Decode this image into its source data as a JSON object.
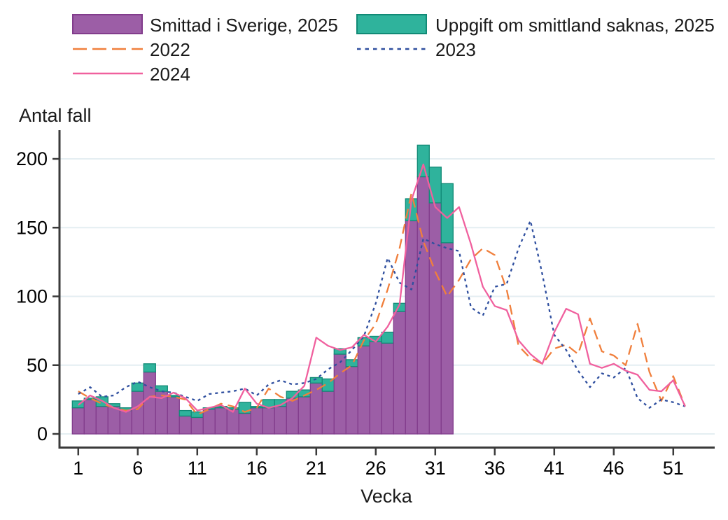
{
  "legend": {
    "items": [
      {
        "label": "Smittad i Sverige, 2025",
        "type": "swatch",
        "color": "#9c5ea6",
        "border": "#823c8c"
      },
      {
        "label": "Uppgift om smittland saknas, 2025",
        "type": "swatch",
        "color": "#2fb39c",
        "border": "#118a76"
      },
      {
        "label": "2022",
        "type": "line",
        "color": "#f07f3c",
        "dash": "20,8"
      },
      {
        "label": "2023",
        "type": "line",
        "color": "#2f4f9f",
        "dash": "5.5,6"
      },
      {
        "label": "2024",
        "type": "line",
        "color": "#f0609e",
        "dash": ""
      }
    ]
  },
  "chart_data": {
    "type": "combo-stacked-bar-line",
    "ylabel": "Antal fall",
    "xlabel": "Vecka",
    "ylim": [
      0,
      215
    ],
    "yticks": [
      0,
      50,
      100,
      150,
      200
    ],
    "xticks": [
      1,
      6,
      11,
      16,
      21,
      26,
      31,
      36,
      41,
      46,
      51
    ],
    "weeks_total": 52,
    "grid_color": "#e4eef2",
    "axis_color": "#3a3a3a",
    "stacked_bars": {
      "start_week": 1,
      "series": [
        {
          "name": "Smittad i Sverige, 2025",
          "color": "#9c5ea6",
          "border": "#823c8c",
          "values": [
            19,
            25,
            20,
            20,
            17,
            31,
            45,
            31,
            27,
            13,
            12,
            18,
            19,
            18,
            15,
            19,
            19,
            20,
            26,
            27,
            37,
            31,
            58,
            49,
            64,
            67,
            66,
            89,
            155,
            187,
            168,
            139
          ]
        },
        {
          "name": "Uppgift om smittland saknas, 2025",
          "color": "#2fb39c",
          "border": "#118a76",
          "values": [
            5,
            1,
            7,
            2,
            2,
            6,
            6,
            4,
            1,
            4,
            4,
            1,
            1,
            1,
            8,
            1,
            6,
            5,
            5,
            5,
            4,
            9,
            4,
            5,
            6,
            4,
            8,
            6,
            16,
            23,
            26,
            43
          ]
        }
      ]
    },
    "lines": [
      {
        "name": "2022",
        "color": "#f07f3c",
        "dash": "14,8",
        "values": [
          31,
          26,
          22,
          19,
          17,
          18,
          27,
          28,
          27,
          25,
          14,
          18,
          22,
          20,
          16,
          19,
          33,
          27,
          24,
          28,
          32,
          37,
          44,
          50,
          68,
          80,
          105,
          135,
          175,
          140,
          118,
          100,
          112,
          127,
          135,
          130,
          105,
          64,
          55,
          51,
          62,
          65,
          58,
          84,
          60,
          57,
          50,
          80,
          45,
          24,
          42,
          20
        ]
      },
      {
        "name": "2023",
        "color": "#2f4f9f",
        "dash": "4,5",
        "values": [
          29,
          34,
          27,
          28,
          34,
          38,
          34,
          31,
          30,
          27,
          24,
          29,
          30,
          31,
          33,
          28,
          36,
          39,
          36,
          37,
          40,
          47,
          52,
          61,
          71,
          95,
          128,
          110,
          105,
          142,
          138,
          135,
          133,
          92,
          86,
          107,
          109,
          135,
          155,
          116,
          72,
          61,
          46,
          34,
          44,
          41,
          48,
          26,
          19,
          25,
          23,
          20
        ]
      },
      {
        "name": "2024",
        "color": "#f0609e",
        "dash": "",
        "values": [
          21,
          28,
          24,
          19,
          16,
          20,
          27,
          26,
          30,
          26,
          17,
          19,
          21,
          16,
          33,
          22,
          19,
          21,
          26,
          35,
          70,
          64,
          61,
          63,
          72,
          67,
          78,
          94,
          170,
          196,
          165,
          157,
          165,
          138,
          107,
          93,
          90,
          68,
          58,
          51,
          74,
          91,
          87,
          51,
          48,
          51,
          46,
          43,
          32,
          31,
          39,
          20
        ]
      }
    ]
  }
}
